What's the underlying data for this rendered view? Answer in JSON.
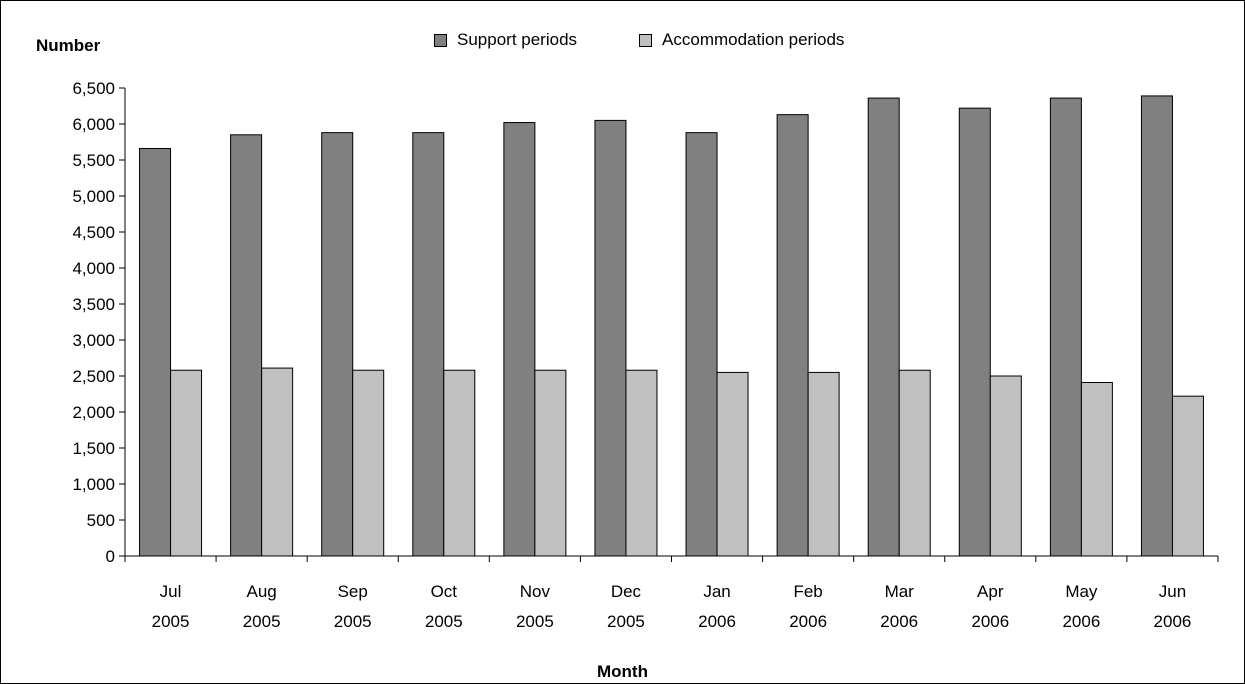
{
  "chart_data": {
    "type": "bar",
    "title": "",
    "ylabel": "Number",
    "xlabel": "Month",
    "categories": [
      [
        "Jul",
        "2005"
      ],
      [
        "Aug",
        "2005"
      ],
      [
        "Sep",
        "2005"
      ],
      [
        "Oct",
        "2005"
      ],
      [
        "Nov",
        "2005"
      ],
      [
        "Dec",
        "2005"
      ],
      [
        "Jan",
        "2006"
      ],
      [
        "Feb",
        "2006"
      ],
      [
        "Mar",
        "2006"
      ],
      [
        "Apr",
        "2006"
      ],
      [
        "May",
        "2006"
      ],
      [
        "Jun",
        "2006"
      ]
    ],
    "series": [
      {
        "name": "Support periods",
        "color": "#808080",
        "values": [
          5660,
          5850,
          5880,
          5880,
          6020,
          6050,
          5880,
          6130,
          6360,
          6220,
          6360,
          6390
        ]
      },
      {
        "name": "Accommodation periods",
        "color": "#c0c0c0",
        "values": [
          2580,
          2610,
          2580,
          2580,
          2580,
          2580,
          2550,
          2550,
          2580,
          2500,
          2410,
          2220
        ]
      }
    ],
    "yticks": [
      "0",
      "500",
      "1,000",
      "1,500",
      "2,000",
      "2,500",
      "3,000",
      "3,500",
      "4,000",
      "4,500",
      "5,000",
      "5,500",
      "6,000",
      "6,500"
    ],
    "ylim": [
      0,
      6500
    ],
    "ytick_step": 500,
    "grid": false,
    "legend_position": "top-center"
  }
}
